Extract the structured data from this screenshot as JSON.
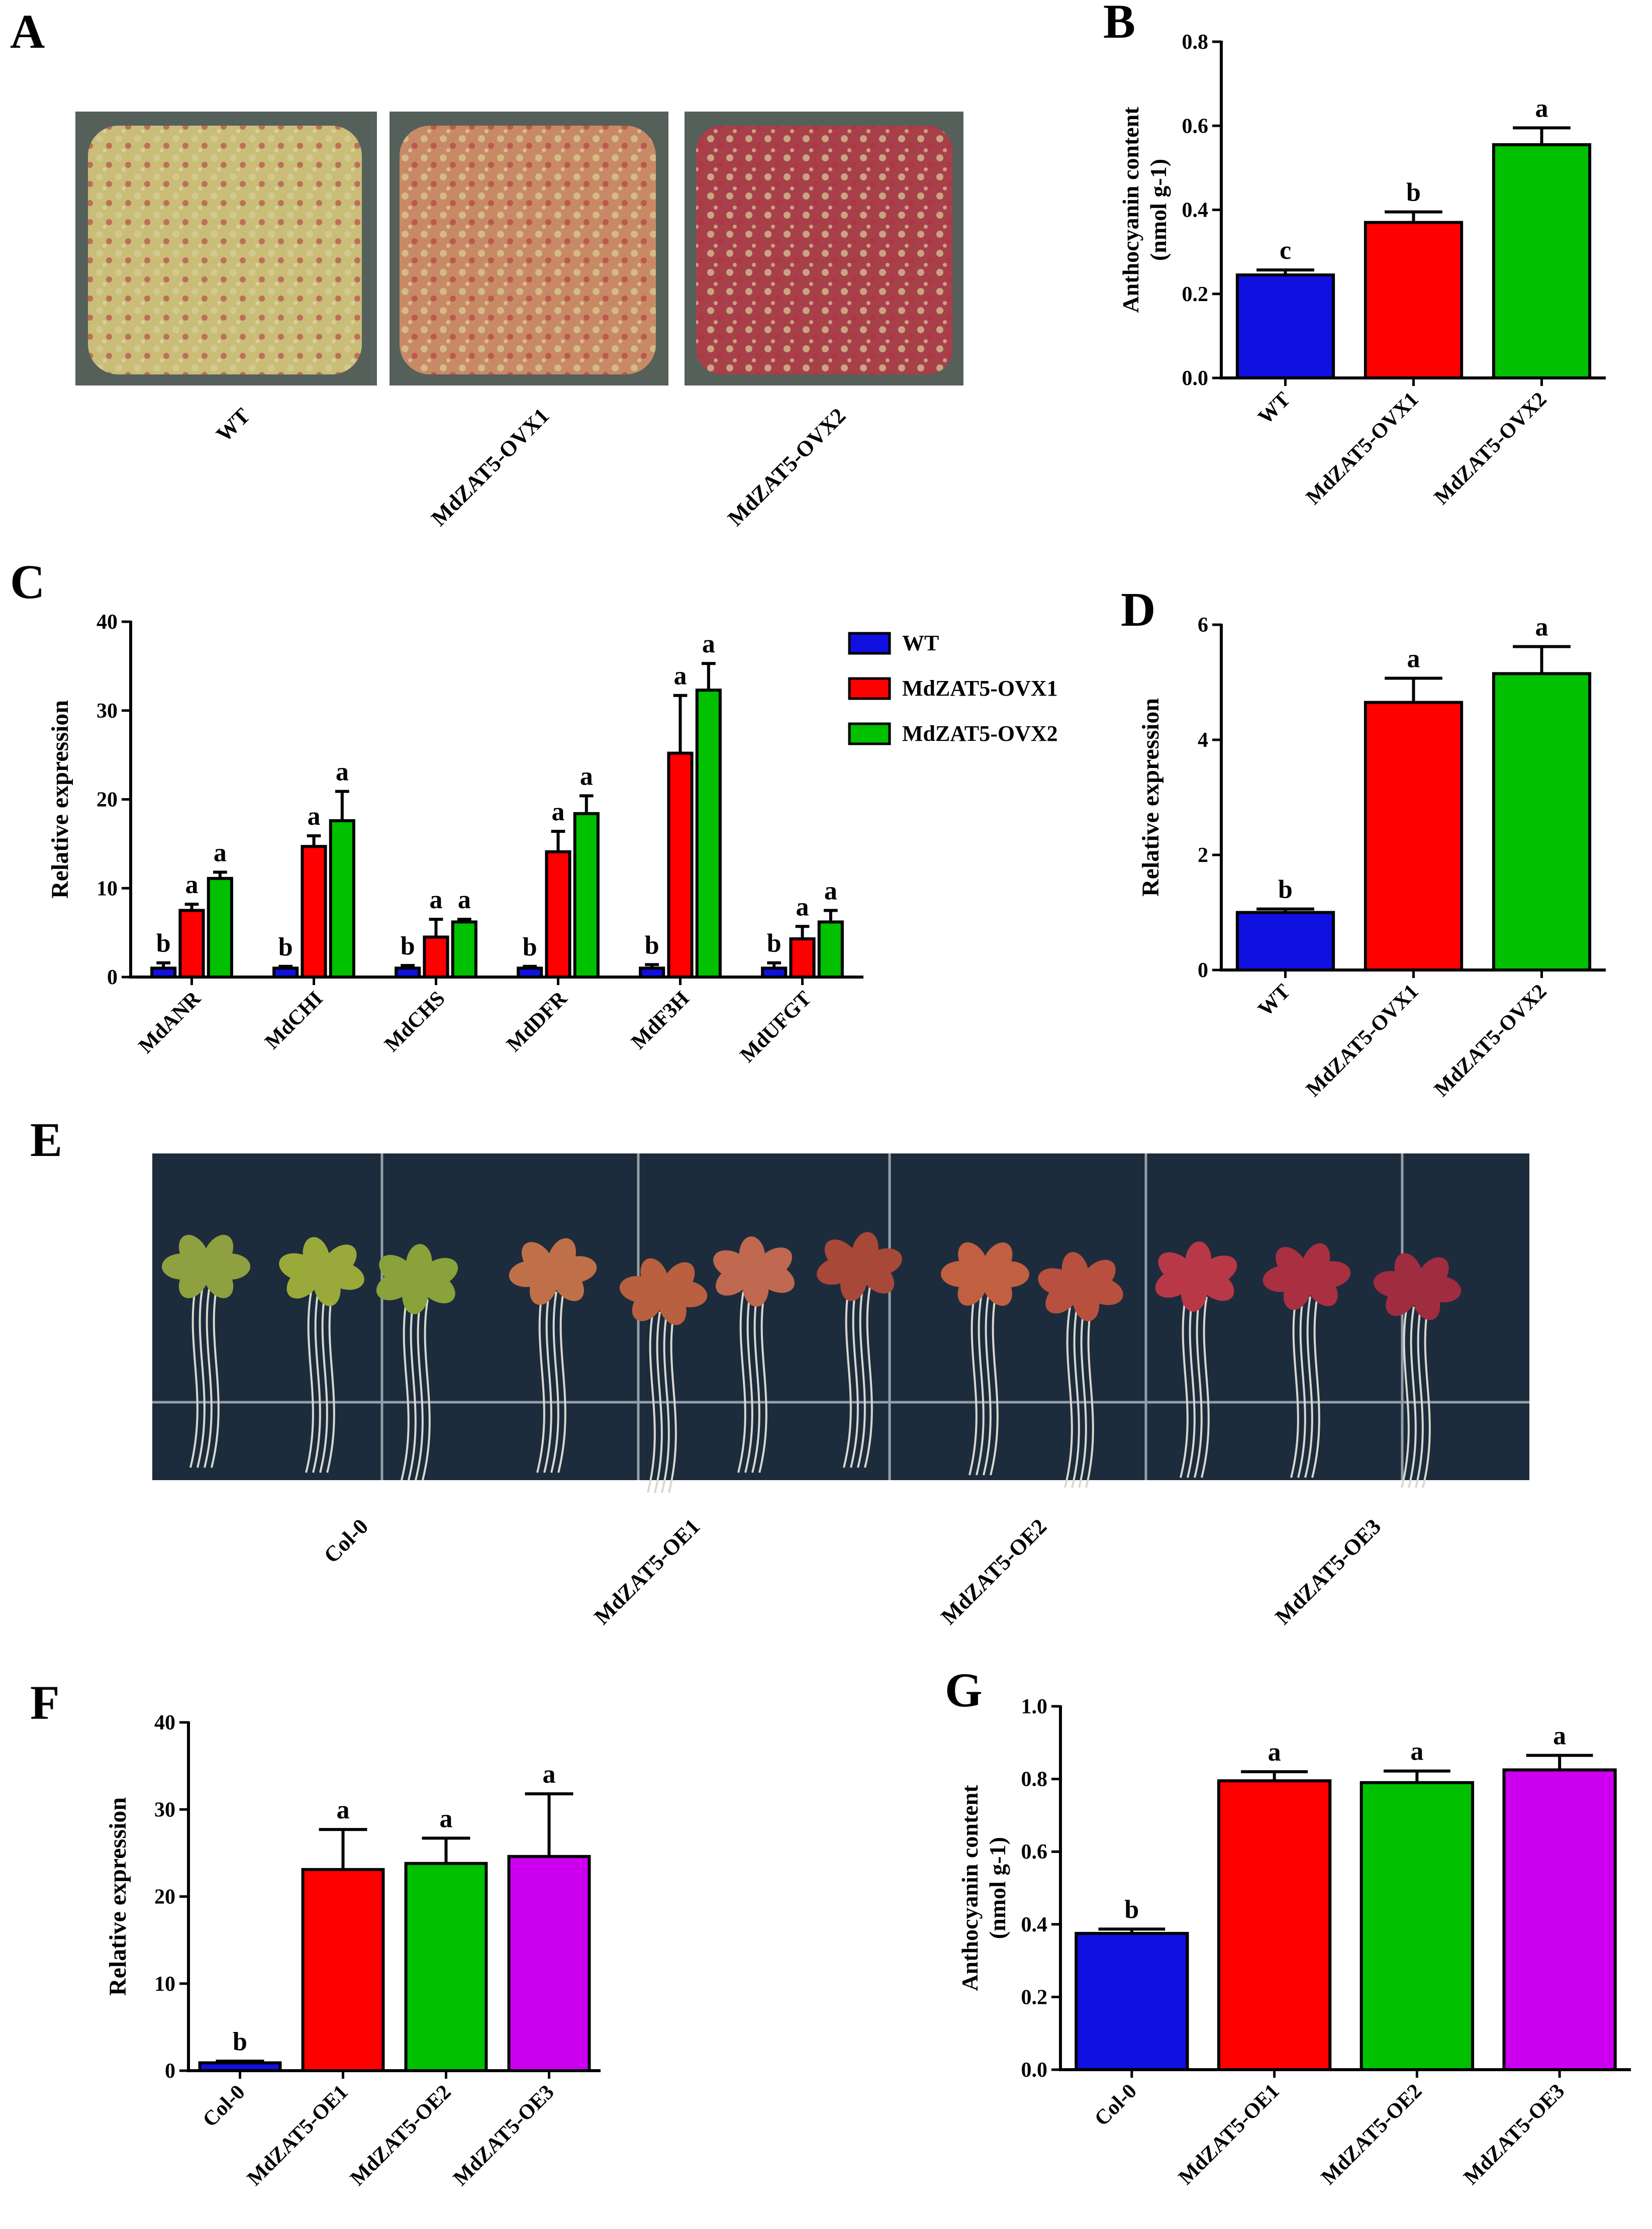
{
  "colors": {
    "blue": "#1010e0",
    "red": "#ff0000",
    "green": "#00c000",
    "purple": "#cc00ee",
    "axis": "#000000"
  },
  "panels": {
    "A": {
      "letter": "A",
      "labels": [
        "WT",
        "MdZAT5-OVX1",
        "MdZAT5-OVX2"
      ],
      "callus_colors": [
        "#c9bd78",
        "#c88a66",
        "#a8404a"
      ]
    },
    "E": {
      "letter": "E",
      "labels": [
        "Col-0",
        "MdZAT5-OE1",
        "MdZAT5-OE2",
        "MdZAT5-OE3"
      ]
    }
  },
  "chart_data": [
    {
      "id": "B",
      "letter": "B",
      "type": "bar",
      "categories": [
        "WT",
        "MdZAT5-OVX1",
        "MdZAT5-OVX2"
      ],
      "values": [
        0.245,
        0.37,
        0.555
      ],
      "errors": [
        0.012,
        0.025,
        0.04
      ],
      "sig": [
        "c",
        "b",
        "a"
      ],
      "colors": [
        "#1010e0",
        "#ff0000",
        "#00c000"
      ],
      "ylabel": "Anthocyanin content",
      "ylabel2": "(nmol g-1)",
      "ylim": [
        0,
        0.8
      ],
      "yticks": [
        0.0,
        0.2,
        0.4,
        0.6,
        0.8
      ],
      "ytick_labels": [
        "0.0",
        "0.2",
        "0.4",
        "0.6",
        "0.8"
      ]
    },
    {
      "id": "C",
      "letter": "C",
      "type": "bar",
      "grouped": true,
      "categories": [
        "MdANR",
        "MdCHI",
        "MdCHS",
        "MdDFR",
        "MdF3H",
        "MdUFGT"
      ],
      "series": [
        {
          "name": "WT",
          "color": "#1010e0",
          "values": [
            1,
            1,
            1,
            1,
            1,
            1
          ],
          "errors": [
            0.6,
            0.2,
            0.3,
            0.2,
            0.4,
            0.6
          ],
          "sig": [
            "b",
            "b",
            "b",
            "b",
            "b",
            "b"
          ]
        },
        {
          "name": "MdZAT5-OVX1",
          "color": "#ff0000",
          "values": [
            7.5,
            14.7,
            4.5,
            14.1,
            25.2,
            4.3
          ],
          "errors": [
            0.7,
            1.2,
            2.0,
            2.3,
            6.5,
            1.4
          ],
          "sig": [
            "a",
            "a",
            "a",
            "a",
            "a",
            "a"
          ]
        },
        {
          "name": "MdZAT5-OVX2",
          "color": "#00c000",
          "values": [
            11.1,
            17.6,
            6.2,
            18.4,
            32.3,
            6.2
          ],
          "errors": [
            0.7,
            3.3,
            0.3,
            2.0,
            3.0,
            1.3
          ],
          "sig": [
            "a",
            "a",
            "a",
            "a",
            "a",
            "a"
          ]
        }
      ],
      "ylabel": "Relative expression",
      "ylim": [
        0,
        40
      ],
      "yticks": [
        0,
        10,
        20,
        30,
        40
      ],
      "ytick_labels": [
        "0",
        "10",
        "20",
        "30",
        "40"
      ],
      "legend_position": "top-right"
    },
    {
      "id": "D",
      "letter": "D",
      "type": "bar",
      "categories": [
        "WT",
        "MdZAT5-OVX1",
        "MdZAT5-OVX2"
      ],
      "values": [
        1.0,
        4.65,
        5.15
      ],
      "errors": [
        0.06,
        0.42,
        0.47
      ],
      "sig": [
        "b",
        "a",
        "a"
      ],
      "colors": [
        "#1010e0",
        "#ff0000",
        "#00c000"
      ],
      "ylabel": "Relative expression",
      "ylim": [
        0,
        6
      ],
      "yticks": [
        0,
        2,
        4,
        6
      ],
      "ytick_labels": [
        "0",
        "2",
        "4",
        "6"
      ]
    },
    {
      "id": "F",
      "letter": "F",
      "type": "bar",
      "categories": [
        "Col-0",
        "MdZAT5-OE1",
        "MdZAT5-OE2",
        "MdZAT5-OE3"
      ],
      "values": [
        0.9,
        23.1,
        23.8,
        24.6
      ],
      "errors": [
        0.2,
        4.6,
        2.9,
        7.2
      ],
      "sig": [
        "b",
        "a",
        "a",
        "a"
      ],
      "colors": [
        "#1010e0",
        "#ff0000",
        "#00c000",
        "#cc00ee"
      ],
      "ylabel": "Relative expression",
      "ylim": [
        0,
        40
      ],
      "yticks": [
        0,
        10,
        20,
        30,
        40
      ],
      "ytick_labels": [
        "0",
        "10",
        "20",
        "30",
        "40"
      ]
    },
    {
      "id": "G",
      "letter": "G",
      "type": "bar",
      "categories": [
        "Col-0",
        "MdZAT5-OE1",
        "MdZAT5-OE2",
        "MdZAT5-OE3"
      ],
      "values": [
        0.375,
        0.795,
        0.79,
        0.825
      ],
      "errors": [
        0.012,
        0.025,
        0.032,
        0.04
      ],
      "sig": [
        "b",
        "a",
        "a",
        "a"
      ],
      "colors": [
        "#1010e0",
        "#ff0000",
        "#00c000",
        "#cc00ee"
      ],
      "ylabel": "Anthocyanin content",
      "ylabel2": "(nmol g-1)",
      "ylim": [
        0,
        1.0
      ],
      "yticks": [
        0.0,
        0.2,
        0.4,
        0.6,
        0.8,
        1.0
      ],
      "ytick_labels": [
        "0.0",
        "0.2",
        "0.4",
        "0.6",
        "0.8",
        "1.0"
      ]
    }
  ]
}
